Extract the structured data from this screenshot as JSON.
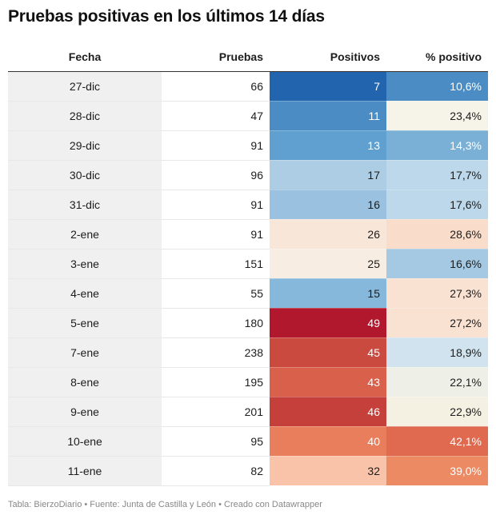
{
  "title": "Pruebas positivas en los últimos 14 días",
  "footer": "Tabla: BierzoDiario • Fuente: Junta de Castilla y León • Creado con Datawrapper",
  "chart_data": {
    "type": "table",
    "title": "Pruebas positivas en los últimos 14 días",
    "columns": [
      "Fecha",
      "Pruebas",
      "Positivos",
      "% positivo"
    ],
    "rows": [
      {
        "fecha": "27-dic",
        "pruebas": "66",
        "positivos": "7",
        "pct": "10,6%",
        "pos_color": "#2264ad",
        "pct_color": "#4a8cc3"
      },
      {
        "fecha": "28-dic",
        "pruebas": "47",
        "positivos": "11",
        "pct": "23,4%",
        "pos_color": "#4a8cc3",
        "pct_color": "#f6f3e8"
      },
      {
        "fecha": "29-dic",
        "pruebas": "91",
        "positivos": "13",
        "pct": "14,3%",
        "pos_color": "#5fa0d0",
        "pct_color": "#7ab0d6"
      },
      {
        "fecha": "30-dic",
        "pruebas": "96",
        "positivos": "17",
        "pct": "17,7%",
        "pos_color": "#accde4",
        "pct_color": "#bcd8ea"
      },
      {
        "fecha": "31-dic",
        "pruebas": "91",
        "positivos": "16",
        "pct": "17,6%",
        "pos_color": "#9ac2e0",
        "pct_color": "#bcd8ea"
      },
      {
        "fecha": "2-ene",
        "pruebas": "91",
        "positivos": "26",
        "pct": "28,6%",
        "pos_color": "#f8e6d8",
        "pct_color": "#f9ddca"
      },
      {
        "fecha": "3-ene",
        "pruebas": "151",
        "positivos": "25",
        "pct": "16,6%",
        "pos_color": "#f8ede2",
        "pct_color": "#a5c9e3"
      },
      {
        "fecha": "4-ene",
        "pruebas": "55",
        "positivos": "15",
        "pct": "27,3%",
        "pos_color": "#86b8dc",
        "pct_color": "#fae2d2"
      },
      {
        "fecha": "5-ene",
        "pruebas": "180",
        "positivos": "49",
        "pct": "27,2%",
        "pos_color": "#b1182d",
        "pct_color": "#fae2d2"
      },
      {
        "fecha": "7-ene",
        "pruebas": "238",
        "positivos": "45",
        "pct": "18,9%",
        "pos_color": "#ca4a40",
        "pct_color": "#d0e3ef"
      },
      {
        "fecha": "8-ene",
        "pruebas": "195",
        "positivos": "43",
        "pct": "22,1%",
        "pos_color": "#d9604b",
        "pct_color": "#eef0e8"
      },
      {
        "fecha": "9-ene",
        "pruebas": "201",
        "positivos": "46",
        "pct": "22,9%",
        "pos_color": "#c5403b",
        "pct_color": "#f5f1e2"
      },
      {
        "fecha": "10-ene",
        "pruebas": "95",
        "positivos": "40",
        "pct": "42,1%",
        "pos_color": "#e97e5c",
        "pct_color": "#df6a50"
      },
      {
        "fecha": "11-ene",
        "pruebas": "82",
        "positivos": "32",
        "pct": "39,0%",
        "pos_color": "#f8c3a9",
        "pct_color": "#ec8a63"
      }
    ]
  }
}
